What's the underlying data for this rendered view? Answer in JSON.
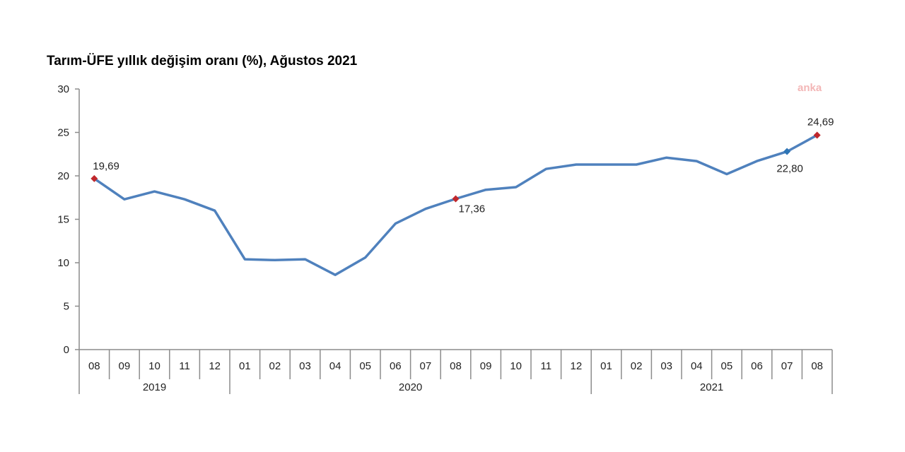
{
  "watermark": "anka",
  "chart_data": {
    "type": "line",
    "title": "Tarım-ÜFE yıllık değişim oranı (%), Ağustos 2021",
    "xlabel": "",
    "ylabel": "",
    "ylim": [
      0,
      30
    ],
    "yticks": [
      "0",
      "5",
      "10",
      "15",
      "20",
      "25",
      "30"
    ],
    "categories": [
      "08",
      "09",
      "10",
      "11",
      "12",
      "01",
      "02",
      "03",
      "04",
      "05",
      "06",
      "07",
      "08",
      "09",
      "10",
      "11",
      "12",
      "01",
      "02",
      "03",
      "04",
      "05",
      "06",
      "07",
      "08"
    ],
    "years": [
      {
        "label": "2019",
        "count": 5
      },
      {
        "label": "2020",
        "count": 12
      },
      {
        "label": "2021",
        "count": 8
      }
    ],
    "series": [
      {
        "color": "#4f81bd",
        "values": [
          19.69,
          17.3,
          18.2,
          17.3,
          16.0,
          10.4,
          10.3,
          10.4,
          8.6,
          10.6,
          14.5,
          16.2,
          17.36,
          18.4,
          18.7,
          20.8,
          21.3,
          21.3,
          21.3,
          22.1,
          21.7,
          20.2,
          21.7,
          22.8,
          24.69
        ]
      }
    ],
    "markers": [
      {
        "index": 0,
        "label": "19,69",
        "color": "#c0282d",
        "label_pos": "above-right"
      },
      {
        "index": 12,
        "label": "17,36",
        "color": "#c0282d",
        "label_pos": "below-right"
      },
      {
        "index": 23,
        "label": "22,80",
        "color": "#2e75b6",
        "label_pos": "below"
      },
      {
        "index": 24,
        "label": "24,69",
        "color": "#c0282d",
        "label_pos": "above"
      }
    ],
    "grid": false,
    "legend": "none"
  }
}
